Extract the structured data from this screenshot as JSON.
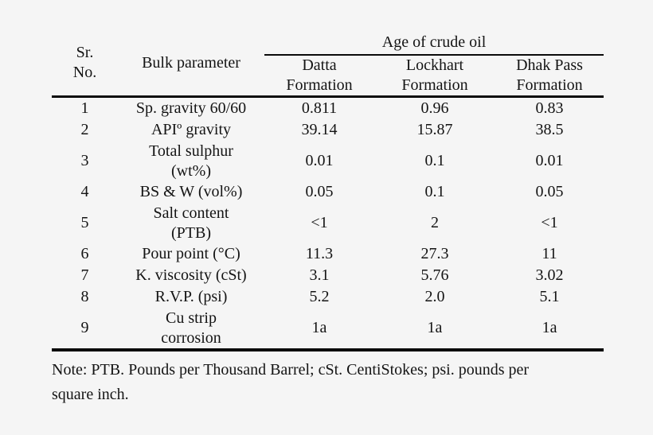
{
  "colors": {
    "background": "#f5f5f5",
    "text": "#141414",
    "rule": "#0a0a0a"
  },
  "table": {
    "header": {
      "sr_no_lines": [
        "Sr.",
        "No."
      ],
      "bulk_parameter": "Bulk parameter",
      "age_group": "Age of crude oil",
      "columns": [
        {
          "lines": [
            "Datta",
            "Formation"
          ]
        },
        {
          "lines": [
            "Lockhart",
            "Formation"
          ]
        },
        {
          "lines": [
            "Dhak Pass",
            "Formation"
          ]
        }
      ]
    },
    "rows": [
      {
        "sr": "1",
        "parameter_lines": [
          "Sp. gravity 60/60"
        ],
        "values": [
          "0.811",
          "0.96",
          "0.83"
        ]
      },
      {
        "sr": "2",
        "parameter_lines": [
          "APIº gravity"
        ],
        "values": [
          "39.14",
          "15.87",
          "38.5"
        ]
      },
      {
        "sr": "3",
        "parameter_lines": [
          "Total sulphur",
          "(wt%)"
        ],
        "values": [
          "0.01",
          "0.1",
          "0.01"
        ]
      },
      {
        "sr": "4",
        "parameter_lines": [
          "BS & W (vol%)"
        ],
        "values": [
          "0.05",
          "0.1",
          "0.05"
        ]
      },
      {
        "sr": "5",
        "parameter_lines": [
          "Salt content",
          "(PTB)"
        ],
        "values": [
          "<1",
          "2",
          "<1"
        ]
      },
      {
        "sr": "6",
        "parameter_lines": [
          "Pour point (°C)"
        ],
        "values": [
          "11.3",
          "27.3",
          "11"
        ]
      },
      {
        "sr": "7",
        "parameter_lines": [
          "K. viscosity (cSt)"
        ],
        "values": [
          "3.1",
          "5.76",
          "3.02"
        ]
      },
      {
        "sr": "8",
        "parameter_lines": [
          "R.V.P. (psi)"
        ],
        "values": [
          "5.2",
          "2.0",
          "5.1"
        ]
      },
      {
        "sr": "9",
        "parameter_lines": [
          "Cu strip",
          "corrosion"
        ],
        "values": [
          "1a",
          "1a",
          "1a"
        ]
      }
    ],
    "note_lines": [
      "Note: PTB. Pounds per Thousand Barrel; cSt. CentiStokes; psi. pounds per",
      "square inch."
    ]
  }
}
